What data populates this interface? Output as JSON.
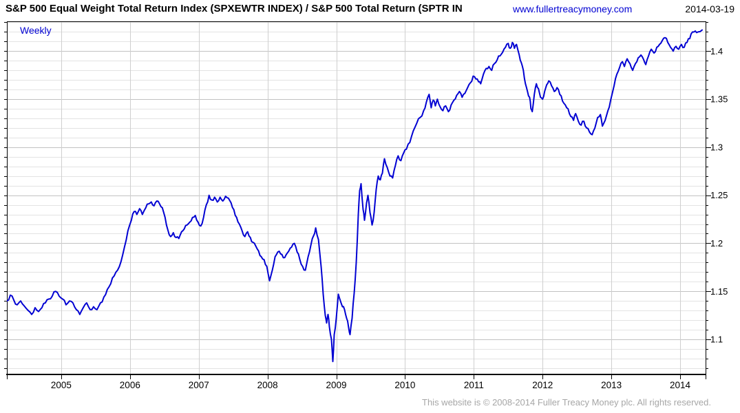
{
  "header": {
    "title": "S&P 500 Equal Weight Total Return Index  (SPXEWTR INDEX) / S&P 500 Total Return  (SPTR IN",
    "website": "www.fullertreacymoney.com",
    "date": "2014-03-19"
  },
  "chart": {
    "frequency_label": "Weekly"
  },
  "footer": {
    "copyright": "This website is © 2008-2014 Fuller Treacy Money plc. All rights reserved."
  },
  "colors": {
    "line": "#0000d2",
    "frequency_label": "#0000d2",
    "website_link": "#0000d2",
    "grid_minor": "#e3e3e3",
    "grid_major": "#c2c2c2",
    "grid_vertical": "#cfcfcf",
    "axis": "#000000",
    "footer_text": "#a6a6a6",
    "label_text": "#000000"
  },
  "chart_data": {
    "type": "line",
    "title": "S&P 500 Equal Weight Total Return Index  (SPXEWTR INDEX) / S&P 500 Total Return  (SPTR IN",
    "frequency": "Weekly",
    "legend_position": "none",
    "grid": true,
    "x_ticks": [
      2005,
      2006,
      2007,
      2008,
      2009,
      2010,
      2011,
      2012,
      2013,
      2014
    ],
    "x_tick_labels": [
      "2005",
      "2006",
      "2007",
      "2008",
      "2009",
      "2010",
      "2011",
      "2012",
      "2013",
      "2014"
    ],
    "y_ticks": [
      {
        "label": "1.4",
        "value": 1.4
      },
      {
        "label": "1.35",
        "value": 1.35
      },
      {
        "label": "1.3",
        "value": 1.3
      },
      {
        "label": "1.25",
        "value": 1.25
      },
      {
        "label": "1.2",
        "value": 1.2
      },
      {
        "label": "1.15",
        "value": 1.15
      },
      {
        "label": "1.1",
        "value": 1.1
      }
    ],
    "y_minor_step": 0.01,
    "x_range": [
      2004.21,
      2014.37
    ],
    "y_range": [
      1.0635,
      1.431
    ],
    "series": [
      {
        "name": "SPXEWTR / SPTR ratio",
        "points": [
          [
            2004.21,
            1.14
          ],
          [
            2004.26,
            1.146
          ],
          [
            2004.31,
            1.141
          ],
          [
            2004.36,
            1.136
          ],
          [
            2004.41,
            1.14
          ],
          [
            2004.46,
            1.135
          ],
          [
            2004.52,
            1.13
          ],
          [
            2004.57,
            1.126
          ],
          [
            2004.62,
            1.133
          ],
          [
            2004.67,
            1.129
          ],
          [
            2004.72,
            1.133
          ],
          [
            2004.77,
            1.138
          ],
          [
            2004.82,
            1.142
          ],
          [
            2004.87,
            1.145
          ],
          [
            2004.92,
            1.15
          ],
          [
            2004.97,
            1.145
          ],
          [
            2005.02,
            1.142
          ],
          [
            2005.07,
            1.136
          ],
          [
            2005.12,
            1.14
          ],
          [
            2005.17,
            1.138
          ],
          [
            2005.22,
            1.131
          ],
          [
            2005.27,
            1.126
          ],
          [
            2005.32,
            1.133
          ],
          [
            2005.37,
            1.138
          ],
          [
            2005.42,
            1.131
          ],
          [
            2005.47,
            1.134
          ],
          [
            2005.52,
            1.131
          ],
          [
            2005.57,
            1.138
          ],
          [
            2005.62,
            1.144
          ],
          [
            2005.67,
            1.152
          ],
          [
            2005.72,
            1.158
          ],
          [
            2005.77,
            1.166
          ],
          [
            2005.82,
            1.172
          ],
          [
            2005.87,
            1.181
          ],
          [
            2005.92,
            1.196
          ],
          [
            2005.97,
            1.213
          ],
          [
            2006.02,
            1.224
          ],
          [
            2006.06,
            1.233
          ],
          [
            2006.1,
            1.23
          ],
          [
            2006.14,
            1.236
          ],
          [
            2006.18,
            1.23
          ],
          [
            2006.23,
            1.237
          ],
          [
            2006.27,
            1.241
          ],
          [
            2006.31,
            1.243
          ],
          [
            2006.35,
            1.239
          ],
          [
            2006.39,
            1.244
          ],
          [
            2006.43,
            1.241
          ],
          [
            2006.47,
            1.237
          ],
          [
            2006.51,
            1.227
          ],
          [
            2006.55,
            1.214
          ],
          [
            2006.59,
            1.207
          ],
          [
            2006.63,
            1.211
          ],
          [
            2006.67,
            1.206
          ],
          [
            2006.71,
            1.205
          ],
          [
            2006.75,
            1.212
          ],
          [
            2006.79,
            1.215
          ],
          [
            2006.83,
            1.219
          ],
          [
            2006.87,
            1.222
          ],
          [
            2006.91,
            1.227
          ],
          [
            2006.95,
            1.229
          ],
          [
            2006.99,
            1.222
          ],
          [
            2007.03,
            1.218
          ],
          [
            2007.07,
            1.227
          ],
          [
            2007.11,
            1.24
          ],
          [
            2007.15,
            1.25
          ],
          [
            2007.19,
            1.245
          ],
          [
            2007.23,
            1.248
          ],
          [
            2007.27,
            1.243
          ],
          [
            2007.31,
            1.248
          ],
          [
            2007.35,
            1.244
          ],
          [
            2007.39,
            1.249
          ],
          [
            2007.43,
            1.247
          ],
          [
            2007.47,
            1.242
          ],
          [
            2007.51,
            1.235
          ],
          [
            2007.55,
            1.227
          ],
          [
            2007.59,
            1.22
          ],
          [
            2007.63,
            1.213
          ],
          [
            2007.67,
            1.207
          ],
          [
            2007.71,
            1.212
          ],
          [
            2007.75,
            1.206
          ],
          [
            2007.79,
            1.201
          ],
          [
            2007.83,
            1.197
          ],
          [
            2007.87,
            1.192
          ],
          [
            2007.91,
            1.186
          ],
          [
            2007.95,
            1.183
          ],
          [
            2007.99,
            1.176
          ],
          [
            2008.03,
            1.161
          ],
          [
            2008.07,
            1.172
          ],
          [
            2008.11,
            1.186
          ],
          [
            2008.15,
            1.191
          ],
          [
            2008.19,
            1.189
          ],
          [
            2008.23,
            1.185
          ],
          [
            2008.27,
            1.188
          ],
          [
            2008.31,
            1.192
          ],
          [
            2008.35,
            1.196
          ],
          [
            2008.39,
            1.2
          ],
          [
            2008.43,
            1.191
          ],
          [
            2008.47,
            1.183
          ],
          [
            2008.51,
            1.176
          ],
          [
            2008.55,
            1.172
          ],
          [
            2008.59,
            1.186
          ],
          [
            2008.63,
            1.198
          ],
          [
            2008.67,
            1.208
          ],
          [
            2008.7,
            1.216
          ],
          [
            2008.74,
            1.204
          ],
          [
            2008.78,
            1.175
          ],
          [
            2008.81,
            1.147
          ],
          [
            2008.84,
            1.125
          ],
          [
            2008.86,
            1.117
          ],
          [
            2008.88,
            1.126
          ],
          [
            2008.9,
            1.113
          ],
          [
            2008.93,
            1.1
          ],
          [
            2008.95,
            1.077
          ],
          [
            2008.97,
            1.105
          ],
          [
            2009.0,
            1.122
          ],
          [
            2009.03,
            1.147
          ],
          [
            2009.06,
            1.14
          ],
          [
            2009.09,
            1.134
          ],
          [
            2009.12,
            1.131
          ],
          [
            2009.15,
            1.122
          ],
          [
            2009.18,
            1.112
          ],
          [
            2009.2,
            1.105
          ],
          [
            2009.23,
            1.122
          ],
          [
            2009.26,
            1.148
          ],
          [
            2009.29,
            1.18
          ],
          [
            2009.32,
            1.23
          ],
          [
            2009.34,
            1.255
          ],
          [
            2009.36,
            1.262
          ],
          [
            2009.39,
            1.235
          ],
          [
            2009.41,
            1.224
          ],
          [
            2009.44,
            1.242
          ],
          [
            2009.46,
            1.25
          ],
          [
            2009.49,
            1.232
          ],
          [
            2009.52,
            1.219
          ],
          [
            2009.55,
            1.232
          ],
          [
            2009.58,
            1.256
          ],
          [
            2009.61,
            1.27
          ],
          [
            2009.64,
            1.266
          ],
          [
            2009.67,
            1.273
          ],
          [
            2009.7,
            1.288
          ],
          [
            2009.74,
            1.279
          ],
          [
            2009.78,
            1.27
          ],
          [
            2009.82,
            1.268
          ],
          [
            2009.86,
            1.281
          ],
          [
            2009.9,
            1.291
          ],
          [
            2009.94,
            1.286
          ],
          [
            2009.98,
            1.294
          ],
          [
            2010.02,
            1.298
          ],
          [
            2010.07,
            1.305
          ],
          [
            2010.12,
            1.317
          ],
          [
            2010.17,
            1.325
          ],
          [
            2010.22,
            1.331
          ],
          [
            2010.27,
            1.338
          ],
          [
            2010.31,
            1.347
          ],
          [
            2010.35,
            1.355
          ],
          [
            2010.38,
            1.341
          ],
          [
            2010.41,
            1.349
          ],
          [
            2010.44,
            1.343
          ],
          [
            2010.47,
            1.35
          ],
          [
            2010.51,
            1.342
          ],
          [
            2010.55,
            1.338
          ],
          [
            2010.59,
            1.343
          ],
          [
            2010.63,
            1.337
          ],
          [
            2010.67,
            1.344
          ],
          [
            2010.71,
            1.349
          ],
          [
            2010.75,
            1.354
          ],
          [
            2010.79,
            1.358
          ],
          [
            2010.83,
            1.352
          ],
          [
            2010.87,
            1.356
          ],
          [
            2010.91,
            1.362
          ],
          [
            2010.95,
            1.367
          ],
          [
            2010.99,
            1.374
          ],
          [
            2011.03,
            1.371
          ],
          [
            2011.07,
            1.368
          ],
          [
            2011.1,
            1.366
          ],
          [
            2011.14,
            1.376
          ],
          [
            2011.18,
            1.382
          ],
          [
            2011.22,
            1.384
          ],
          [
            2011.26,
            1.38
          ],
          [
            2011.3,
            1.387
          ],
          [
            2011.34,
            1.391
          ],
          [
            2011.38,
            1.395
          ],
          [
            2011.42,
            1.399
          ],
          [
            2011.46,
            1.404
          ],
          [
            2011.5,
            1.408
          ],
          [
            2011.53,
            1.403
          ],
          [
            2011.56,
            1.409
          ],
          [
            2011.59,
            1.403
          ],
          [
            2011.62,
            1.407
          ],
          [
            2011.66,
            1.396
          ],
          [
            2011.69,
            1.388
          ],
          [
            2011.72,
            1.38
          ],
          [
            2011.75,
            1.366
          ],
          [
            2011.78,
            1.358
          ],
          [
            2011.81,
            1.352
          ],
          [
            2011.83,
            1.34
          ],
          [
            2011.85,
            1.337
          ],
          [
            2011.88,
            1.355
          ],
          [
            2011.91,
            1.366
          ],
          [
            2011.94,
            1.361
          ],
          [
            2011.97,
            1.352
          ],
          [
            2012.0,
            1.35
          ],
          [
            2012.03,
            1.358
          ],
          [
            2012.06,
            1.365
          ],
          [
            2012.09,
            1.369
          ],
          [
            2012.13,
            1.364
          ],
          [
            2012.17,
            1.358
          ],
          [
            2012.21,
            1.362
          ],
          [
            2012.25,
            1.355
          ],
          [
            2012.29,
            1.348
          ],
          [
            2012.33,
            1.344
          ],
          [
            2012.37,
            1.34
          ],
          [
            2012.41,
            1.332
          ],
          [
            2012.45,
            1.328
          ],
          [
            2012.48,
            1.335
          ],
          [
            2012.52,
            1.327
          ],
          [
            2012.56,
            1.323
          ],
          [
            2012.6,
            1.327
          ],
          [
            2012.64,
            1.32
          ],
          [
            2012.68,
            1.316
          ],
          [
            2012.72,
            1.313
          ],
          [
            2012.76,
            1.32
          ],
          [
            2012.8,
            1.331
          ],
          [
            2012.84,
            1.334
          ],
          [
            2012.87,
            1.322
          ],
          [
            2012.91,
            1.328
          ],
          [
            2012.95,
            1.338
          ],
          [
            2012.99,
            1.349
          ],
          [
            2013.04,
            1.364
          ],
          [
            2013.08,
            1.376
          ],
          [
            2013.12,
            1.383
          ],
          [
            2013.16,
            1.389
          ],
          [
            2013.19,
            1.384
          ],
          [
            2013.23,
            1.392
          ],
          [
            2013.27,
            1.387
          ],
          [
            2013.31,
            1.38
          ],
          [
            2013.35,
            1.387
          ],
          [
            2013.39,
            1.393
          ],
          [
            2013.43,
            1.396
          ],
          [
            2013.47,
            1.391
          ],
          [
            2013.5,
            1.386
          ],
          [
            2013.54,
            1.395
          ],
          [
            2013.58,
            1.402
          ],
          [
            2013.62,
            1.398
          ],
          [
            2013.66,
            1.404
          ],
          [
            2013.7,
            1.407
          ],
          [
            2013.74,
            1.411
          ],
          [
            2013.78,
            1.414
          ],
          [
            2013.82,
            1.409
          ],
          [
            2013.86,
            1.404
          ],
          [
            2013.9,
            1.4
          ],
          [
            2013.94,
            1.405
          ],
          [
            2013.98,
            1.402
          ],
          [
            2014.02,
            1.407
          ],
          [
            2014.06,
            1.404
          ],
          [
            2014.1,
            1.409
          ],
          [
            2014.14,
            1.413
          ],
          [
            2014.18,
            1.42
          ],
          [
            2014.22,
            1.421
          ],
          [
            2014.26,
            1.42
          ],
          [
            2014.32,
            1.422
          ]
        ]
      }
    ]
  }
}
